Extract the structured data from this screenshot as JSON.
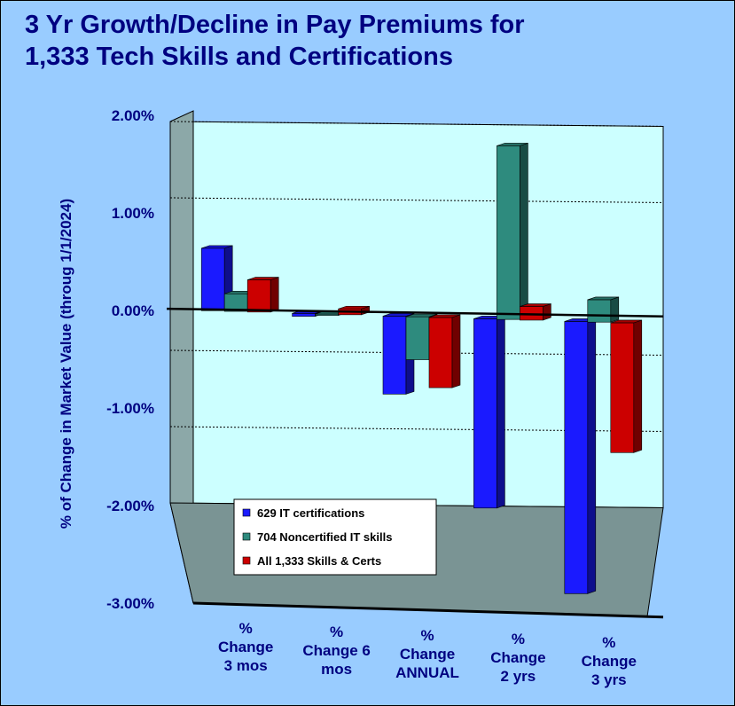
{
  "chart_data": {
    "type": "bar",
    "title_lines": [
      "3 Yr Growth/Decline in Pay Premiums for",
      "1,333 Tech Skills and Certifications"
    ],
    "ylabel": "% of Change in Market Value (throug 1/1/2024)",
    "xlabel": "",
    "ylim": [
      -3.0,
      2.0
    ],
    "yticks": [
      2.0,
      1.0,
      0.0,
      -1.0,
      -2.0,
      -3.0
    ],
    "ytick_labels": [
      "2.00%",
      "1.00%",
      "0.00%",
      "-1.00%",
      "-2.00%",
      "-3.00%"
    ],
    "categories": [
      [
        "%",
        "Change",
        "3 mos"
      ],
      [
        "%",
        "Change 6",
        "mos"
      ],
      [
        "%",
        "Change",
        "ANNUAL"
      ],
      [
        "%",
        "Change",
        "2 yrs"
      ],
      [
        "%",
        "Change",
        "3 yrs"
      ]
    ],
    "series": [
      {
        "name": "629 IT certifications",
        "color": "#1a1aff",
        "values": [
          0.64,
          -0.03,
          -0.8,
          -1.94,
          -2.79
        ]
      },
      {
        "name": "704 Noncertified IT skills",
        "color": "#2e8b7e",
        "values": [
          0.18,
          0.0,
          -0.44,
          1.78,
          0.23
        ]
      },
      {
        "name": "All 1,333 Skills & Certs",
        "color": "#cc0000",
        "values": [
          0.33,
          0.06,
          -0.72,
          0.14,
          -1.33
        ]
      }
    ],
    "grid": true,
    "legend_position": "bottom-left"
  },
  "colors": {
    "background": "#99ccff",
    "plot_wall": "#ccffff",
    "side_wall": "#8ca8a8",
    "floor": "#7a9494",
    "text": "#000080"
  }
}
